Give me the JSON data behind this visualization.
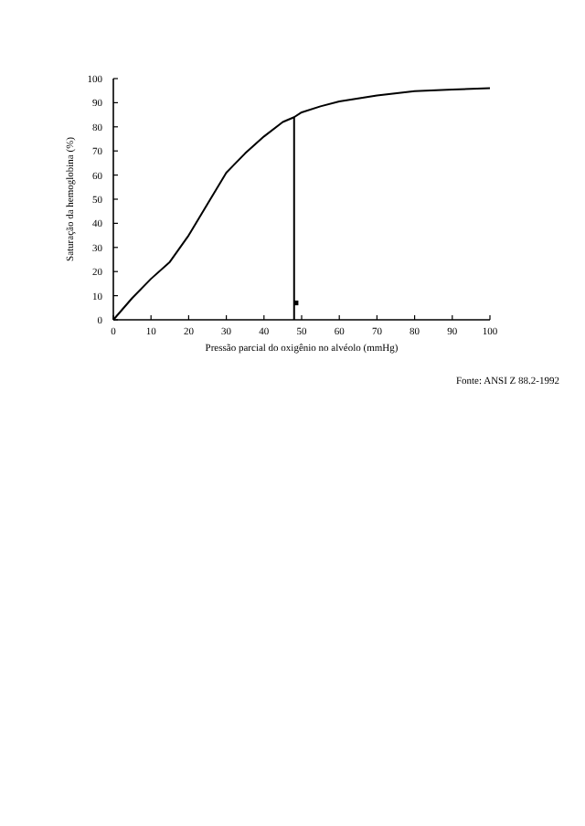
{
  "chart_data": {
    "type": "line",
    "xlabel": "Pressão parcial do oxigênio no alvéolo (mmHg)",
    "ylabel": "Saturação da hemoglobina (%)",
    "annotations": [
      "Fonte: ANSI Z 88.2-1992"
    ],
    "xlim": [
      0,
      100
    ],
    "ylim": [
      0,
      100
    ],
    "xticks": [
      0,
      10,
      20,
      30,
      40,
      50,
      60,
      70,
      80,
      90,
      100
    ],
    "yticks": [
      0,
      10,
      20,
      30,
      40,
      50,
      60,
      70,
      80,
      90,
      100
    ],
    "grid": false,
    "marker": "none",
    "line_style": "solid",
    "series": [
      {
        "color": "#000000",
        "x": [
          0,
          5,
          10,
          15,
          20,
          25,
          30,
          35,
          40,
          45,
          48,
          50,
          55,
          60,
          70,
          80,
          90,
          100
        ],
        "values": [
          0,
          9,
          17,
          24,
          35,
          48,
          61,
          69,
          76,
          82,
          84,
          86,
          88.5,
          90.5,
          93,
          94.8,
          95.5,
          96
        ]
      },
      {
        "color": "#000000",
        "x": [
          48,
          48
        ],
        "values": [
          0,
          84
        ]
      },
      {
        "type": "scatter",
        "marker": "square",
        "color": "#000000",
        "x": [
          48.5
        ],
        "values": [
          7
        ]
      }
    ]
  }
}
